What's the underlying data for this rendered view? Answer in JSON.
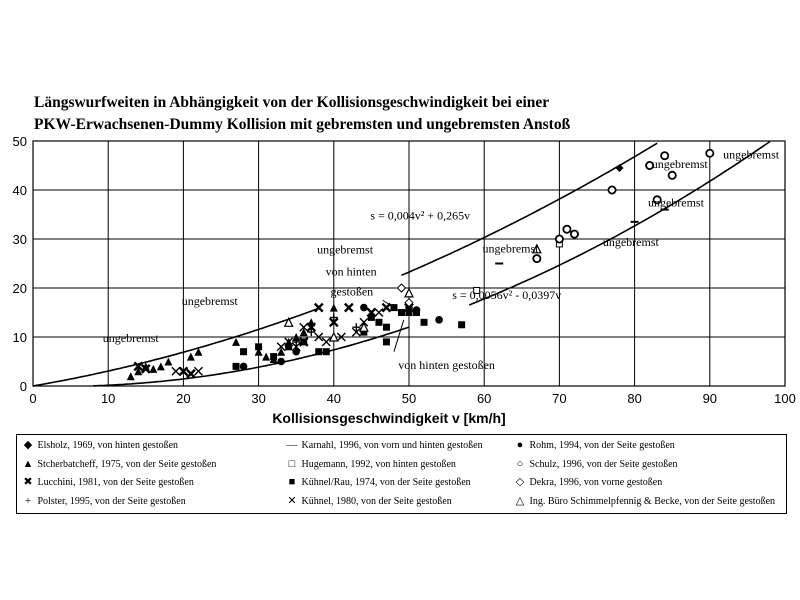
{
  "title": {
    "line1": "Längswurfweiten in Abhängigkeit von der Kollisionsgeschwindigkeit bei einer",
    "line2": "PKW-Erwachsenen-Dummy Kollision mit gebremsten und ungebremsten Anstoß"
  },
  "chart_data": {
    "type": "scatter",
    "title": "Längswurfweiten in Abhängigkeit von der Kollisionsgeschwindigkeit bei einer PKW-Erwachsenen-Dummy Kollision mit gebremsten und ungebremsten Anstoß",
    "xlabel": "Kollisionsgeschwindigkeit v [km/h]",
    "ylabel": "",
    "xlim": [
      0,
      100
    ],
    "ylim": [
      0,
      50
    ],
    "xticks": [
      "0",
      "10",
      "20",
      "30",
      "40",
      "50",
      "60",
      "70",
      "80",
      "90",
      "100"
    ],
    "yticks": [
      "0",
      "10",
      "20",
      "30",
      "40",
      "50"
    ],
    "grid": "major gridlines on both axes",
    "legend_placement": "below",
    "curves": [
      {
        "label": "s = 0,004v² + 0,265v",
        "a": 0.004,
        "b": 0.265
      },
      {
        "label": "s = 0,0056v² - 0,0397v",
        "a": 0.0056,
        "b": -0.0397
      }
    ],
    "annotations": [
      "ungebremst",
      "ungebremst",
      "ungebremst",
      "von hinten",
      "gestoßen",
      "ungebremst",
      "ungebremst",
      "ungebremst",
      "ungebremst",
      "ungebremst",
      "von hinten gestoßen",
      "s = 0,004v² + 0,265v",
      "s = 0,0056v² - 0,0397v"
    ],
    "series": [
      {
        "name": "Elsholz, 1969, von hinten gestoßen",
        "marker": "diamond-filled",
        "points": [
          [
            78,
            44.5
          ]
        ]
      },
      {
        "name": "Stcherbatcheff, 1975, von der Seite gestoßen",
        "marker": "triangle-filled",
        "points": [
          [
            13,
            2
          ],
          [
            14,
            3
          ],
          [
            15,
            4
          ],
          [
            16,
            3.5
          ],
          [
            17,
            4
          ],
          [
            18,
            5
          ],
          [
            21,
            6
          ],
          [
            22,
            7
          ],
          [
            27,
            9
          ],
          [
            30,
            7
          ],
          [
            31,
            6
          ],
          [
            32,
            5.5
          ],
          [
            33,
            7
          ],
          [
            34,
            9
          ],
          [
            35,
            10
          ],
          [
            36,
            11
          ],
          [
            37,
            13
          ],
          [
            40,
            16
          ]
        ]
      },
      {
        "name": "Lucchini, 1981, von der Seite gestoßen",
        "marker": "x-bold",
        "points": [
          [
            14,
            4
          ],
          [
            15,
            3.5
          ],
          [
            20,
            3
          ],
          [
            21,
            2.5
          ],
          [
            36,
            9
          ],
          [
            37,
            12
          ],
          [
            38,
            16
          ],
          [
            40,
            13
          ],
          [
            42,
            16
          ],
          [
            45,
            15
          ],
          [
            47,
            16
          ],
          [
            50,
            16
          ]
        ]
      },
      {
        "name": "Polster, 1995, von der Seite gestoßen",
        "marker": "plus",
        "points": [
          [
            35,
            9
          ],
          [
            37,
            11
          ],
          [
            40,
            14
          ],
          [
            43,
            12
          ]
        ]
      },
      {
        "name": "Karnahl, 1996, von vorn und hinten gestoßen",
        "marker": "dash",
        "points": [
          [
            62,
            25
          ],
          [
            80,
            33.5
          ],
          [
            84,
            36
          ]
        ]
      },
      {
        "name": "Hugemann, 1992, von hinten gestoßen",
        "marker": "square-open",
        "points": [
          [
            59,
            19.5
          ],
          [
            70,
            29
          ]
        ]
      },
      {
        "name": "Kühnel/Rau, 1974, von der Seite gestoßen",
        "marker": "square-filled",
        "points": [
          [
            27,
            4
          ],
          [
            28,
            7
          ],
          [
            30,
            8
          ],
          [
            32,
            6
          ],
          [
            34,
            8
          ],
          [
            36,
            9
          ],
          [
            38,
            7
          ],
          [
            39,
            7
          ],
          [
            44,
            11
          ],
          [
            45,
            14
          ],
          [
            46,
            13
          ],
          [
            47,
            12
          ],
          [
            47,
            9
          ],
          [
            48,
            16
          ],
          [
            49,
            15
          ],
          [
            50,
            15
          ],
          [
            51,
            15
          ],
          [
            52,
            13
          ],
          [
            57,
            12.5
          ]
        ]
      },
      {
        "name": "Kühnel, 1980, von der Seite gestoßen",
        "marker": "x",
        "points": [
          [
            19,
            3
          ],
          [
            22,
            3
          ],
          [
            33,
            8
          ],
          [
            34,
            9
          ],
          [
            35,
            8
          ],
          [
            36,
            12
          ],
          [
            38,
            10
          ],
          [
            39,
            9
          ],
          [
            41,
            10
          ],
          [
            43,
            11
          ],
          [
            44,
            13
          ],
          [
            46,
            15
          ]
        ]
      },
      {
        "name": "Rohm, 1994, von der Seite gestoßen",
        "marker": "circle-filled",
        "points": [
          [
            28,
            4
          ],
          [
            33,
            5
          ],
          [
            35,
            7
          ],
          [
            44,
            16
          ],
          [
            50,
            16
          ],
          [
            51,
            15.5
          ],
          [
            54,
            13.5
          ]
        ]
      },
      {
        "name": "Schulz, 1996, von der Seite gestoßen",
        "marker": "circle-open",
        "points": [
          [
            67,
            26
          ],
          [
            70,
            30
          ],
          [
            71,
            32
          ],
          [
            72,
            31
          ],
          [
            77,
            40
          ],
          [
            82,
            45
          ],
          [
            83,
            38
          ],
          [
            84,
            47
          ],
          [
            85,
            43
          ],
          [
            90,
            47.5
          ]
        ]
      },
      {
        "name": "Dekra, 1996, von vorne gestoßen",
        "marker": "diamond-open",
        "points": [
          [
            49,
            20
          ],
          [
            50,
            17
          ]
        ]
      },
      {
        "name": "Ing. Büro Schimmelpfennig & Becke, von der Seite gestoßen",
        "marker": "triangle-open",
        "points": [
          [
            34,
            13
          ],
          [
            40,
            10
          ],
          [
            44,
            12
          ],
          [
            50,
            19
          ],
          [
            67,
            28
          ]
        ]
      }
    ]
  }
}
